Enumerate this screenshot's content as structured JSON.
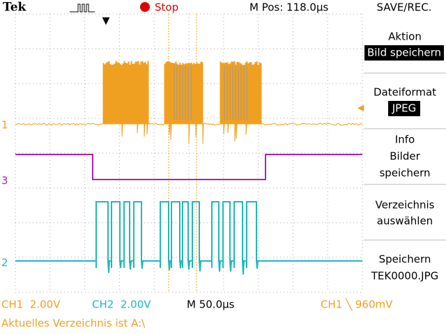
{
  "header": {
    "brand": "Tek",
    "status": "Stop",
    "position": "M Pos: 118.0µs",
    "menu_title": "SAVE/REC."
  },
  "channels": {
    "markers": [
      "1",
      "3",
      "2"
    ]
  },
  "menu": [
    {
      "lines": [
        "Aktion"
      ],
      "selected": "Bild speichern"
    },
    {
      "lines": [
        "Dateiformat"
      ],
      "selected": "JPEG"
    },
    {
      "lines": [
        "Info",
        "Bilder",
        "speichern"
      ]
    },
    {
      "lines": [
        "Verzeichnis",
        "auswählen"
      ]
    },
    {
      "lines": [
        "Speichern",
        "TEK0000.JPG"
      ]
    }
  ],
  "footer": {
    "ch1": "CH1  2.00V",
    "ch2": "CH2  2.00V",
    "timebase": "M 50.0µs",
    "trigger": "CH1 ╲ 960mV",
    "status": "Aktuelles Verzeichnis ist A:\\"
  }
}
